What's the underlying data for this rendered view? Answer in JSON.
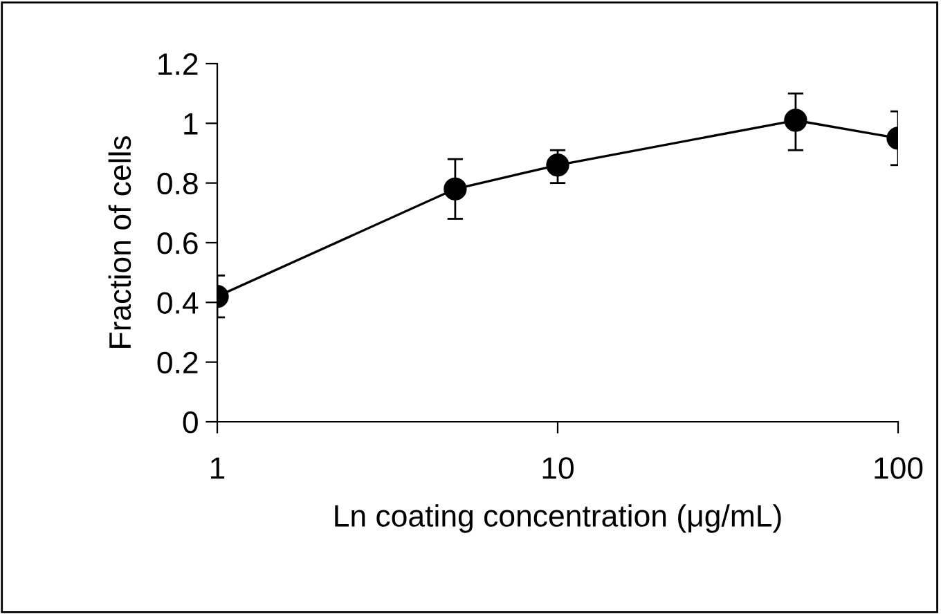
{
  "chart_data": {
    "type": "line",
    "xlabel": "Ln coating concentration (μg/mL)",
    "ylabel": "Fraction of cells",
    "x": [
      1,
      5,
      10,
      50,
      100
    ],
    "series": [
      {
        "color": "#000000",
        "values": [
          0.42,
          0.78,
          0.86,
          1.01,
          0.95
        ],
        "errors": [
          [
            0.35,
            0.49
          ],
          [
            0.68,
            0.88
          ],
          [
            0.8,
            0.91
          ],
          [
            0.91,
            1.1
          ],
          [
            0.86,
            1.04
          ]
        ]
      }
    ],
    "log": "x",
    "xlim": [
      1,
      100
    ],
    "xticks": [
      1,
      10,
      100
    ],
    "ylim": [
      0,
      1.2
    ],
    "yticks": [
      0,
      0.2,
      0.4,
      0.6,
      0.8,
      1,
      1.2
    ],
    "marker": "circle",
    "line_style": "solid",
    "grid": false,
    "legend": false
  }
}
